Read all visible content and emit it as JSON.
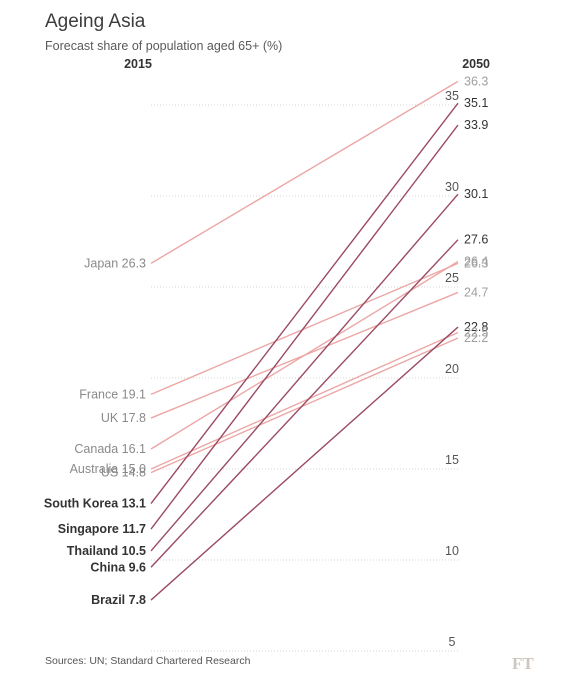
{
  "header": {
    "title": "Ageing Asia",
    "subtitle": "Forecast share of population aged 65+ (%)",
    "year_left": "2015",
    "year_right": "2050"
  },
  "footer": {
    "source": "Sources: UN; Standard Chartered Research",
    "logo": "FT"
  },
  "colors": {
    "emphasis": "#9b4a64",
    "other": "#eba7a5"
  },
  "chart_data": {
    "type": "line",
    "title": "Ageing Asia",
    "subtitle": "Forecast share of population aged 65+ (%)",
    "x": [
      "2015",
      "2050"
    ],
    "yticks": [
      5,
      10,
      15,
      20,
      25,
      30,
      35
    ],
    "ylim": [
      5,
      36.5
    ],
    "grid": true,
    "series": [
      {
        "name": "Japan",
        "values": [
          26.3,
          36.3
        ],
        "emphasis": false,
        "label_left": "Japan 26.3",
        "label_right": "36.3"
      },
      {
        "name": "South Korea",
        "values": [
          13.1,
          35.1
        ],
        "emphasis": true,
        "label_left": "South Korea 13.1",
        "label_right": "35.1"
      },
      {
        "name": "Singapore",
        "values": [
          11.7,
          33.9
        ],
        "emphasis": true,
        "label_left": "Singapore 11.7",
        "label_right": "33.9"
      },
      {
        "name": "Thailand",
        "values": [
          10.5,
          30.1
        ],
        "emphasis": true,
        "label_left": "Thailand 10.5",
        "label_right": "30.1"
      },
      {
        "name": "China",
        "values": [
          9.6,
          27.6
        ],
        "emphasis": true,
        "label_left": "China 9.6",
        "label_right": "27.6"
      },
      {
        "name": "Canada",
        "values": [
          16.1,
          26.4
        ],
        "emphasis": false,
        "label_left": "Canada 16.1",
        "label_right": "26.4"
      },
      {
        "name": "France",
        "values": [
          19.1,
          26.3
        ],
        "emphasis": false,
        "label_left": "France 19.1",
        "label_right": "26.3"
      },
      {
        "name": "UK",
        "values": [
          17.8,
          24.7
        ],
        "emphasis": false,
        "label_left": "UK 17.8",
        "label_right": "24.7"
      },
      {
        "name": "Brazil",
        "values": [
          7.8,
          22.8
        ],
        "emphasis": true,
        "label_left": "Brazil 7.8",
        "label_right": "22.8"
      },
      {
        "name": "Australia",
        "values": [
          15.0,
          22.5
        ],
        "emphasis": false,
        "label_left": "Australia 15.0",
        "label_right": "22.5"
      },
      {
        "name": "US",
        "values": [
          14.8,
          22.2
        ],
        "emphasis": false,
        "label_left": "US 14.8",
        "label_right": "22.2"
      }
    ]
  }
}
